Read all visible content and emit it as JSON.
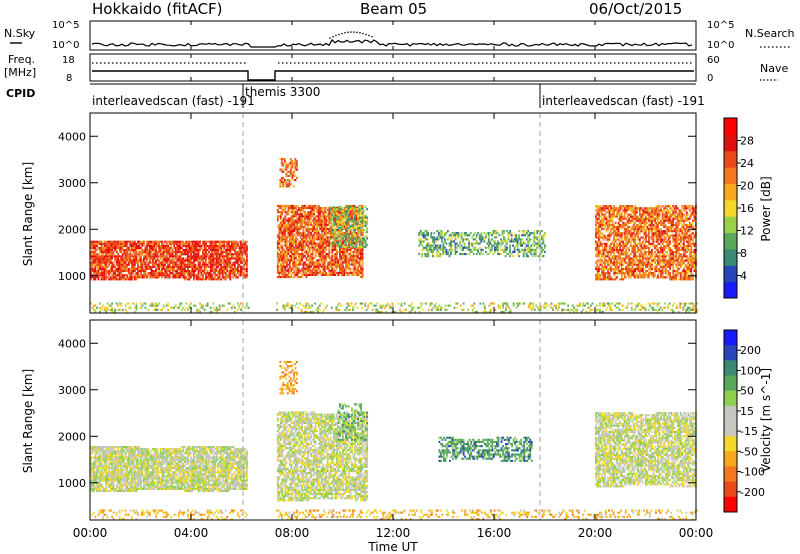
{
  "header": {
    "station": "Hokkaido (fitACF)",
    "beam": "Beam 05",
    "date": "06/Oct/2015"
  },
  "top_panel": {
    "left_label": "N.Sky",
    "right_label": "N.Search",
    "left_ticks": [
      "10^5",
      "10^0"
    ],
    "right_ticks": [
      "10^5",
      "10^0"
    ]
  },
  "freq_panel": {
    "left_label_1": "Freq.",
    "left_label_2": "[MHz]",
    "right_label": "Nave",
    "left_ticks": [
      "18",
      "8"
    ],
    "right_ticks": [
      "60",
      "0"
    ]
  },
  "cpid": {
    "label": "CPID",
    "segments": [
      {
        "name": "interleavedscan (fast)",
        "id": "-191"
      },
      {
        "name": "themis",
        "id": "3300"
      },
      {
        "name": "interleavedscan (fast)",
        "id": "-191"
      }
    ]
  },
  "colors": {
    "power": [
      "#1a1aff",
      "#2946b8",
      "#3a8a73",
      "#5aa85a",
      "#9bd04a",
      "#f2d82a",
      "#f6a820",
      "#f07820",
      "#e84a1a",
      "#e01010",
      "#ff0000"
    ],
    "velocity": [
      "#1a1aff",
      "#2946b8",
      "#3a8a73",
      "#5aa85a",
      "#8ed050",
      "#c6c6c0",
      "#c8c8c0",
      "#f2d82a",
      "#f6a820",
      "#f07820",
      "#e84a1a",
      "#ff0000"
    ],
    "gate_divider": "#a0a0a0",
    "ground_scatter": "#bbbbbb"
  },
  "chart_data": [
    {
      "type": "heatmap",
      "name": "power",
      "ylabel": "Slant Range [km]",
      "yticks": [
        "1000",
        "2000",
        "3000",
        "4000"
      ],
      "ylim": [
        200,
        4500
      ],
      "xlim": [
        0,
        24
      ],
      "colorbar_label": "Power [dB]",
      "colorbar_ticks": [
        "4",
        "8",
        "12",
        "16",
        "20",
        "24",
        "28"
      ],
      "colorbar_range": [
        0,
        32
      ],
      "blobs": [
        {
          "t0": 0.0,
          "t1": 6.2,
          "r0": 900,
          "r1": 1750,
          "p": 26,
          "density": 0.85
        },
        {
          "t0": 7.4,
          "t1": 10.8,
          "r0": 950,
          "r1": 2500,
          "p": 24,
          "density": 0.8
        },
        {
          "t0": 7.5,
          "t1": 8.2,
          "r0": 2900,
          "r1": 3500,
          "p": 23,
          "density": 0.55
        },
        {
          "t0": 9.5,
          "t1": 11.0,
          "r0": 1600,
          "r1": 2500,
          "p": 11,
          "density": 0.55
        },
        {
          "t0": 13.0,
          "t1": 18.0,
          "r0": 1400,
          "r1": 1950,
          "p": 10,
          "density": 0.5
        },
        {
          "t0": 20.0,
          "t1": 24.0,
          "r0": 900,
          "r1": 2500,
          "p": 23,
          "density": 0.75
        },
        {
          "t0": 0.0,
          "t1": 24.0,
          "r0": 200,
          "r1": 420,
          "p": 14,
          "density": 0.3
        }
      ]
    },
    {
      "type": "heatmap",
      "name": "velocity",
      "ylabel": "Slant Range [km]",
      "yticks": [
        "1000",
        "2000",
        "3000",
        "4000"
      ],
      "ylim": [
        200,
        4500
      ],
      "xlim": [
        0,
        24
      ],
      "xlabel": "Time UT",
      "xticks": [
        "00:00",
        "04:00",
        "08:00",
        "12:00",
        "16:00",
        "20:00",
        "00:00"
      ],
      "colorbar_label": "Velocity [m s^-1]",
      "colorbar_ticks": [
        "200",
        "100",
        "50",
        "15",
        "-15",
        "-50",
        "-100",
        "-200"
      ],
      "blobs": [
        {
          "t0": 0.0,
          "t1": 6.2,
          "r0": 800,
          "r1": 1750,
          "v": 0,
          "density": 0.85
        },
        {
          "t0": 7.4,
          "t1": 11.0,
          "r0": 600,
          "r1": 2500,
          "v": 0,
          "density": 0.75
        },
        {
          "t0": 7.5,
          "t1": 8.2,
          "r0": 2900,
          "r1": 3600,
          "v": -60,
          "density": 0.5
        },
        {
          "t0": 9.8,
          "t1": 11.0,
          "r0": 1900,
          "r1": 2700,
          "v": 55,
          "density": 0.35
        },
        {
          "t0": 13.8,
          "t1": 17.5,
          "r0": 1450,
          "r1": 1950,
          "v": 65,
          "density": 0.55
        },
        {
          "t0": 20.0,
          "t1": 24.0,
          "r0": 900,
          "r1": 2500,
          "v": 0,
          "density": 0.75
        },
        {
          "t0": 0.0,
          "t1": 24.0,
          "r0": 200,
          "r1": 420,
          "v": -40,
          "density": 0.3
        }
      ]
    }
  ]
}
